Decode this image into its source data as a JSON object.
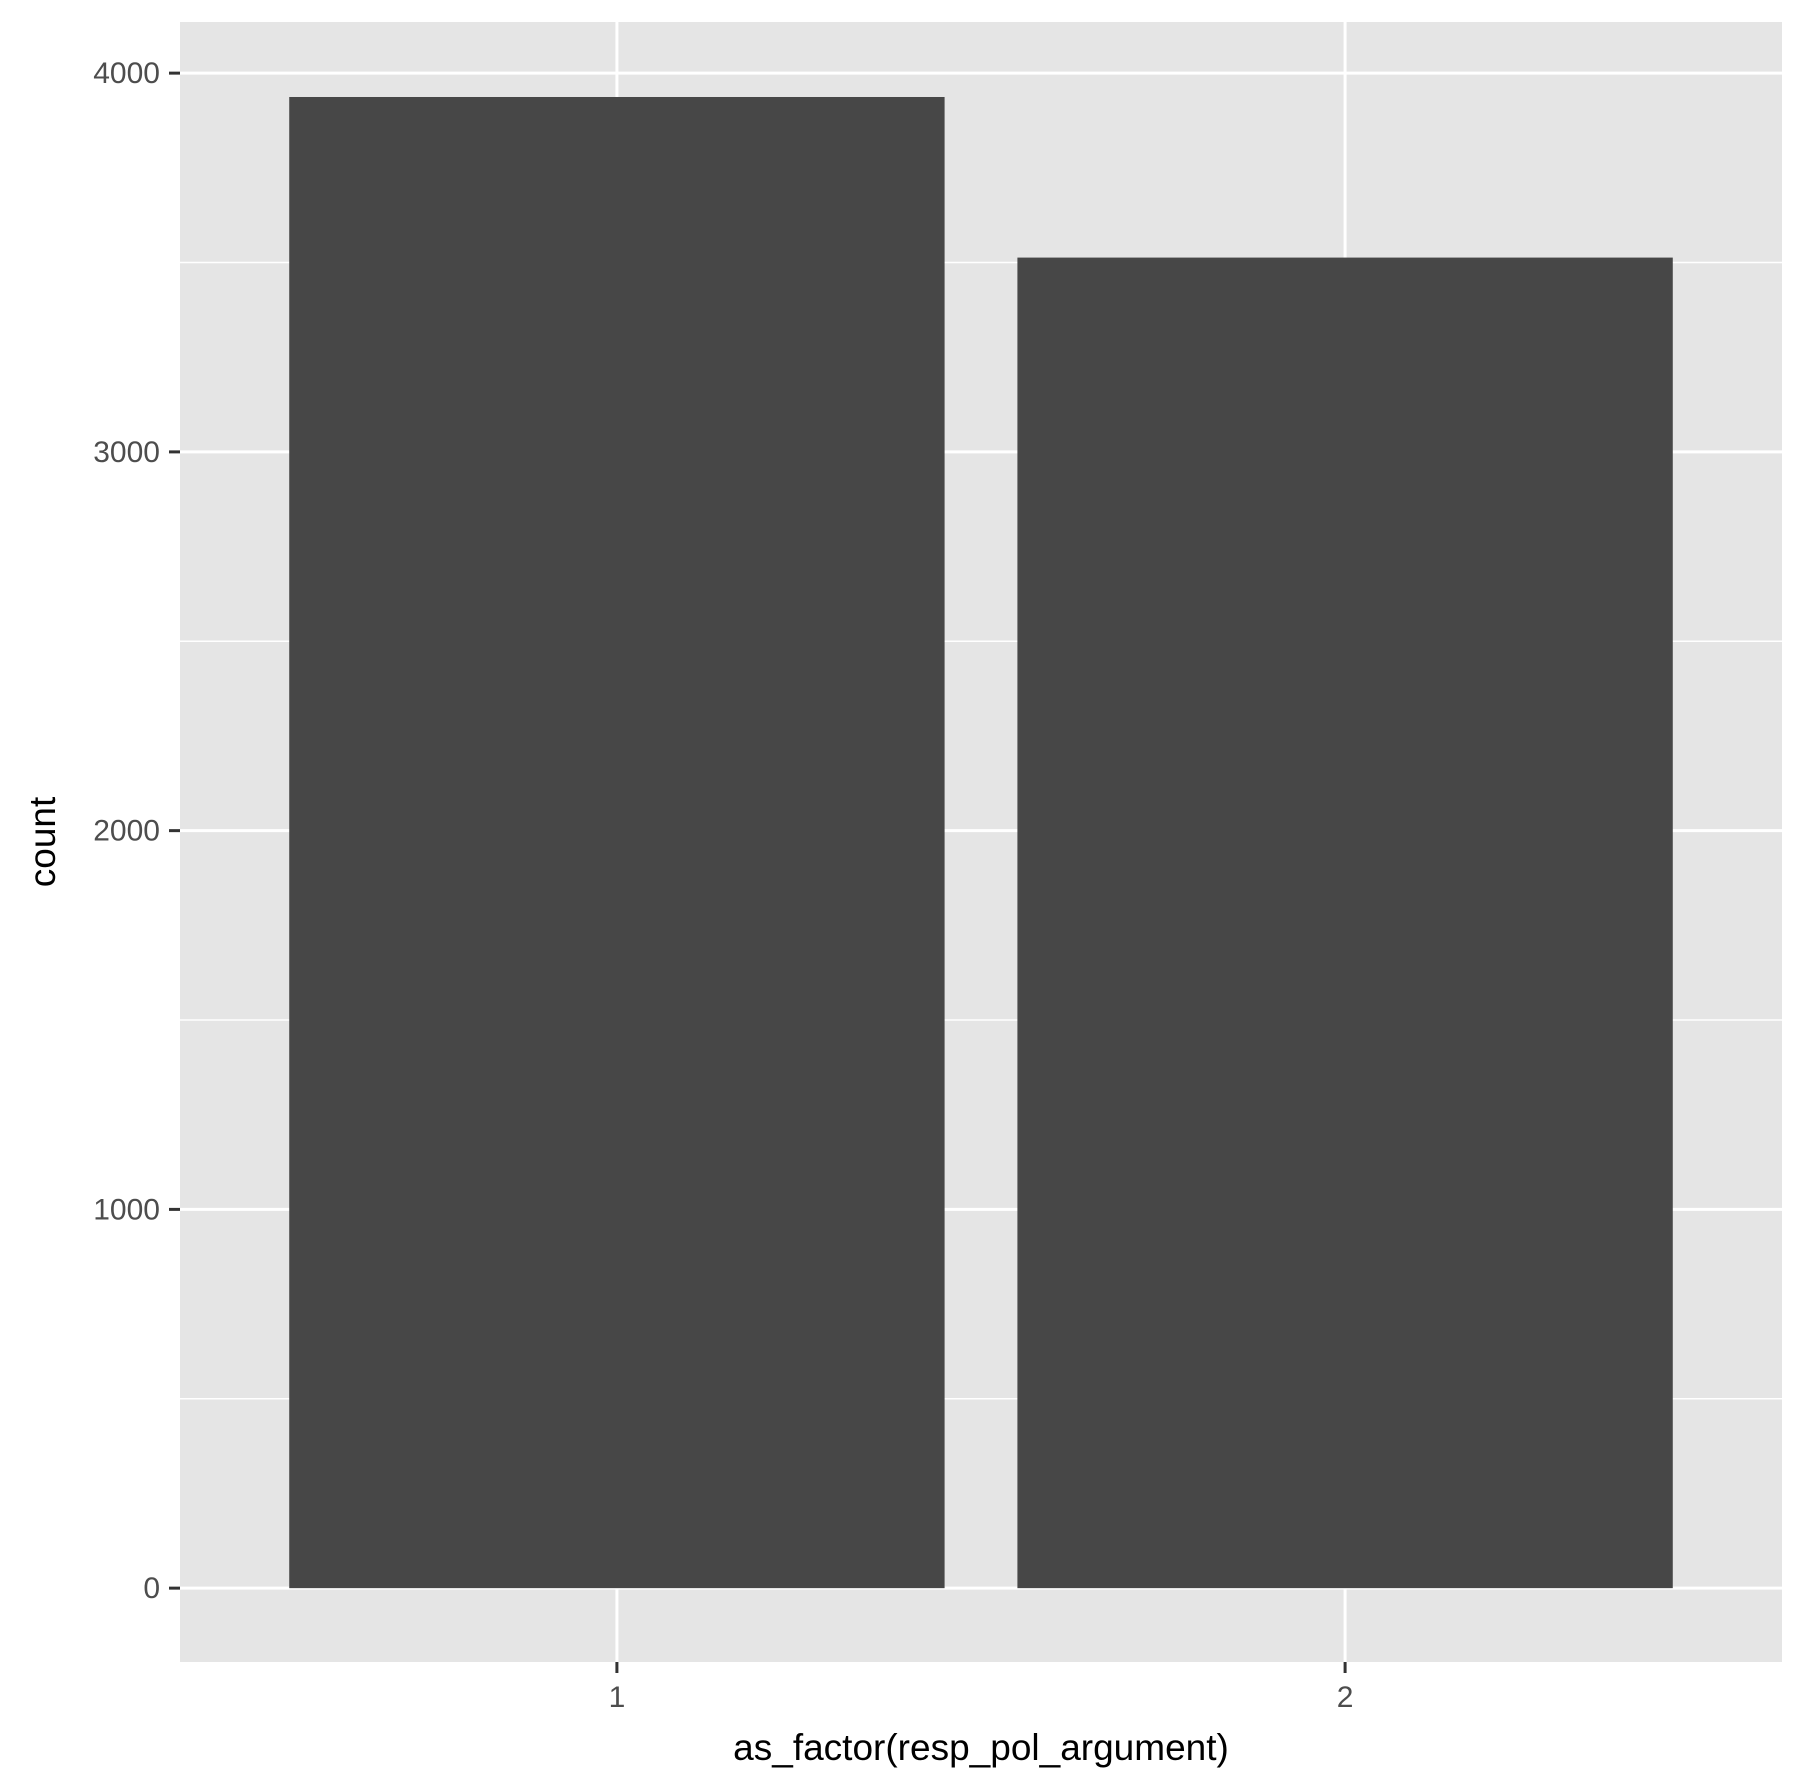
{
  "chart_data": {
    "type": "bar",
    "title": "",
    "xlabel": "as_factor(resp_pol_argument)",
    "ylabel": "count",
    "categories": [
      "1",
      "2"
    ],
    "values": [
      3937,
      3513
    ],
    "ylim": [
      -195,
      4135
    ],
    "y_ticks": [
      0,
      1000,
      2000,
      3000,
      4000
    ],
    "y_tick_labels": [
      "0",
      "1000",
      "2000",
      "3000",
      "4000"
    ],
    "grid": true,
    "legend": "none",
    "colors": {
      "panel_background": "#e5e5e5",
      "grid_line": "#ffffff",
      "bar_fill": "#474747",
      "tick_label": "#4d4d4d",
      "tick_mark": "#333333",
      "axis_title": "#000000"
    }
  }
}
